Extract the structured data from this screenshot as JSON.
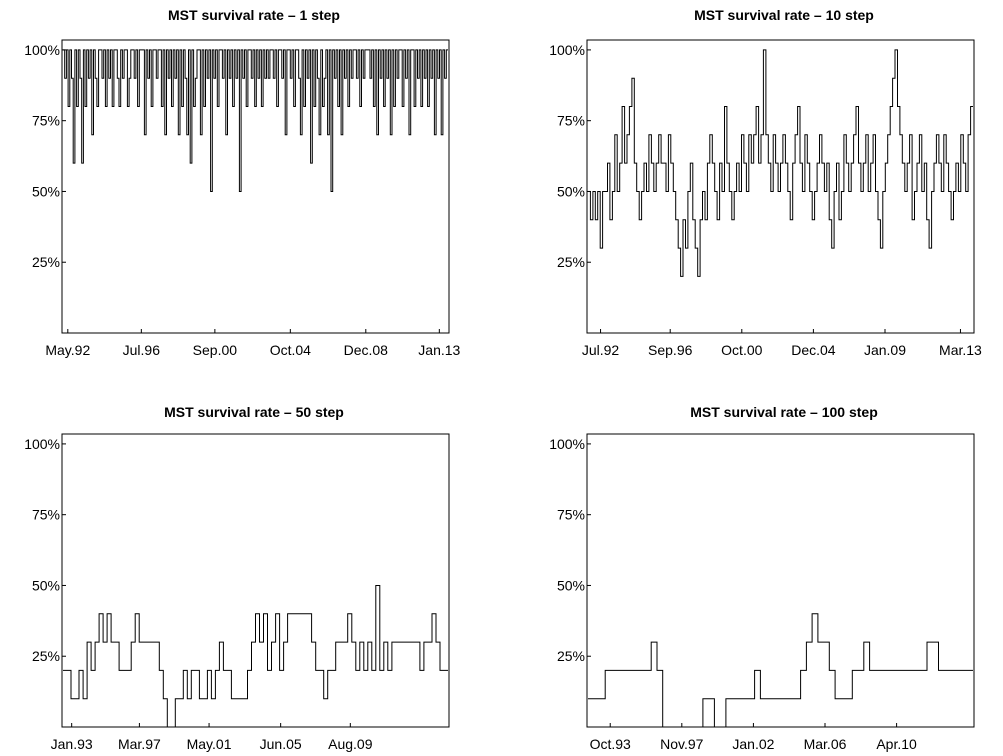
{
  "chart_data": [
    {
      "type": "line",
      "title": "MST survival rate – 1 step",
      "xlabel": "",
      "ylabel": "",
      "x_tick_labels": [
        "May.92",
        "Jul.96",
        "Sep.00",
        "Oct.04",
        "Dec.08",
        "Jan.13"
      ],
      "y_tick_labels": [
        "25%",
        "50%",
        "75%",
        "100%"
      ],
      "y_ticks": [
        25,
        50,
        75,
        100
      ],
      "ylim": [
        0,
        100
      ],
      "grid": false,
      "series": [
        {
          "values": [
            100,
            90,
            100,
            80,
            100,
            90,
            60,
            100,
            80,
            100,
            90,
            60,
            100,
            80,
            100,
            90,
            100,
            70,
            100,
            90,
            80,
            100,
            100,
            90,
            100,
            80,
            100,
            90,
            100,
            80,
            100,
            100,
            90,
            80,
            100,
            90,
            100,
            100,
            80,
            90,
            100,
            100,
            90,
            100,
            80,
            100,
            100,
            100,
            70,
            100,
            90,
            100,
            80,
            100,
            100,
            90,
            100,
            100,
            80,
            100,
            70,
            100,
            90,
            100,
            80,
            100,
            90,
            100,
            70,
            100,
            80,
            100,
            90,
            70,
            100,
            60,
            100,
            80,
            90,
            100,
            100,
            70,
            100,
            80,
            100,
            90,
            100,
            50,
            100,
            90,
            100,
            80,
            100,
            100,
            90,
            100,
            70,
            100,
            90,
            100,
            80,
            100,
            90,
            100,
            50,
            100,
            90,
            100,
            80,
            100,
            100,
            90,
            100,
            80,
            100,
            90,
            100,
            80,
            100,
            90,
            100,
            90,
            100,
            100,
            90,
            100,
            80,
            100,
            100,
            90,
            100,
            70,
            100,
            100,
            90,
            100,
            80,
            100,
            100,
            90,
            70,
            100,
            80,
            100,
            90,
            100,
            60,
            100,
            80,
            100,
            90,
            70,
            100,
            80,
            90,
            100,
            70,
            100,
            50,
            100,
            90,
            100,
            80,
            100,
            70,
            100,
            90,
            100,
            80,
            100,
            90,
            100,
            100,
            90,
            100,
            80,
            100,
            90,
            100,
            100,
            100,
            90,
            100,
            80,
            100,
            70,
            100,
            90,
            100,
            80,
            100,
            90,
            100,
            70,
            100,
            80,
            100,
            90,
            100,
            100,
            80,
            100,
            90,
            100,
            70,
            100,
            100,
            80,
            100,
            90,
            100,
            80,
            100,
            90,
            100,
            80,
            100,
            90,
            100,
            70,
            100,
            90,
            100,
            70,
            100,
            90,
            100
          ]
        }
      ]
    },
    {
      "type": "line",
      "title": "MST survival rate – 10 step",
      "xlabel": "",
      "ylabel": "",
      "x_tick_labels": [
        "Jul.92",
        "Sep.96",
        "Oct.00",
        "Dec.04",
        "Jan.09",
        "Mar.13"
      ],
      "y_tick_labels": [
        "25%",
        "50%",
        "75%",
        "100%"
      ],
      "y_ticks": [
        25,
        50,
        75,
        100
      ],
      "ylim": [
        0,
        100
      ],
      "grid": false,
      "series": [
        {
          "values": [
            50,
            40,
            50,
            40,
            50,
            30,
            50,
            50,
            60,
            40,
            50,
            70,
            50,
            60,
            80,
            60,
            70,
            80,
            90,
            60,
            50,
            40,
            50,
            60,
            50,
            70,
            60,
            50,
            60,
            70,
            60,
            60,
            50,
            70,
            60,
            50,
            40,
            30,
            20,
            40,
            30,
            50,
            60,
            40,
            30,
            20,
            40,
            50,
            40,
            60,
            70,
            60,
            50,
            40,
            60,
            50,
            80,
            60,
            50,
            40,
            50,
            60,
            50,
            70,
            60,
            50,
            70,
            60,
            70,
            80,
            60,
            70,
            100,
            70,
            60,
            50,
            70,
            60,
            50,
            60,
            70,
            60,
            50,
            40,
            60,
            70,
            80,
            60,
            50,
            70,
            60,
            50,
            40,
            50,
            60,
            70,
            60,
            50,
            60,
            40,
            30,
            50,
            60,
            40,
            50,
            70,
            60,
            50,
            60,
            70,
            80,
            60,
            50,
            60,
            70,
            50,
            60,
            70,
            50,
            40,
            30,
            50,
            60,
            70,
            80,
            90,
            100,
            80,
            70,
            60,
            50,
            60,
            70,
            40,
            50,
            60,
            70,
            50,
            60,
            40,
            30,
            50,
            60,
            70,
            60,
            50,
            70,
            60,
            50,
            40,
            50,
            60,
            50,
            70,
            60,
            50,
            70,
            80
          ]
        }
      ]
    },
    {
      "type": "line",
      "title": "MST survival rate – 50 step",
      "xlabel": "",
      "ylabel": "",
      "x_tick_labels": [
        "Jan.93",
        "Mar.97",
        "May.01",
        "Jun.05",
        "Aug.09"
      ],
      "y_tick_labels": [
        "25%",
        "50%",
        "75%",
        "100%"
      ],
      "y_ticks": [
        25,
        50,
        75,
        100
      ],
      "ylim": [
        0,
        100
      ],
      "grid": false,
      "series": [
        {
          "values": [
            20,
            20,
            10,
            10,
            20,
            10,
            30,
            20,
            30,
            40,
            30,
            40,
            30,
            30,
            20,
            20,
            20,
            30,
            40,
            30,
            30,
            30,
            30,
            30,
            20,
            10,
            0,
            0,
            10,
            10,
            20,
            10,
            20,
            20,
            10,
            10,
            20,
            10,
            20,
            30,
            20,
            20,
            10,
            10,
            10,
            10,
            20,
            30,
            40,
            30,
            40,
            20,
            30,
            40,
            20,
            30,
            40,
            40,
            40,
            40,
            40,
            40,
            30,
            20,
            20,
            10,
            20,
            20,
            30,
            30,
            30,
            40,
            30,
            20,
            30,
            20,
            30,
            20,
            50,
            20,
            30,
            20,
            30,
            30,
            30,
            30,
            30,
            30,
            30,
            20,
            30,
            30,
            40,
            30,
            20,
            20
          ]
        }
      ]
    },
    {
      "type": "line",
      "title": "MST survival rate – 100 step",
      "xlabel": "",
      "ylabel": "",
      "x_tick_labels": [
        "Oct.93",
        "Nov.97",
        "Jan.02",
        "Mar.06",
        "Apr.10"
      ],
      "y_tick_labels": [
        "25%",
        "50%",
        "75%",
        "100%"
      ],
      "y_ticks": [
        25,
        50,
        75,
        100
      ],
      "ylim": [
        0,
        100
      ],
      "grid": false,
      "series": [
        {
          "values": [
            10,
            10,
            10,
            20,
            20,
            20,
            20,
            20,
            20,
            20,
            20,
            30,
            20,
            0,
            0,
            0,
            0,
            0,
            0,
            0,
            10,
            10,
            0,
            0,
            10,
            10,
            10,
            10,
            10,
            20,
            10,
            10,
            10,
            10,
            10,
            10,
            10,
            20,
            30,
            40,
            30,
            30,
            20,
            10,
            10,
            10,
            20,
            20,
            30,
            20,
            20,
            20,
            20,
            20,
            20,
            20,
            20,
            20,
            20,
            30,
            30,
            20,
            20,
            20,
            20,
            20,
            20
          ]
        }
      ]
    }
  ]
}
